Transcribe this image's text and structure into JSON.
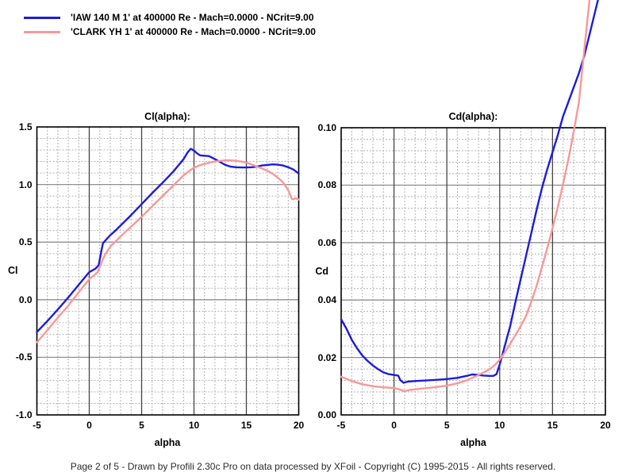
{
  "legend": {
    "items": [
      {
        "name": "IAW 140 M 1",
        "label": "'IAW 140 M 1' at 400000 Re - Mach=0.0000 - NCrit=9.00",
        "color": "#1c1cdc"
      },
      {
        "name": "CLARK YH 1",
        "label": "'CLARK YH 1' at 400000 Re - Mach=0.0000 - NCrit=9.00",
        "color": "#f89898"
      }
    ]
  },
  "footer": "Page 2 of 5   -   Drawn by Profili 2.30c Pro on data processed by  XFoil - Copyright (C) 1995-2015 - All rights reserved.",
  "colors": {
    "grid_minor": "#b3b3b3",
    "grid_major_h": "#8f8f8f",
    "grid_major_v": "#444444",
    "box_border": "#000000"
  },
  "chart_data": [
    {
      "type": "line",
      "title": "Cl(alpha):",
      "xlabel": "alpha",
      "ylabel": "Cl",
      "xlim": [
        -5,
        20
      ],
      "ylim": [
        -1.0,
        1.5
      ],
      "x_major": 5,
      "x_minor": 1,
      "y_major": 0.5,
      "y_minor": 0.1,
      "x_ticks": [
        "-5",
        "0",
        "5",
        "10",
        "15",
        "20"
      ],
      "y_ticks": [
        "1.5",
        "1.0",
        "0.5",
        "0.0",
        "-0.5",
        "-1.0"
      ],
      "grid": true,
      "legend_position": "top-left-of-page",
      "series": [
        {
          "name": "IAW 140 M 1",
          "color": "#1c1cdc",
          "x": [
            -5,
            -4,
            -3,
            -2,
            -1,
            -0.5,
            0,
            0.3,
            0.6,
            0.9,
            1,
            1.3,
            1.5,
            2,
            2.5,
            3,
            4,
            5,
            6,
            7,
            8,
            9,
            9.4,
            9.7,
            10,
            10.3,
            10.6,
            11,
            11.4,
            11.8,
            12.2,
            12.6,
            13,
            13.5,
            14,
            14.5,
            15,
            15.5,
            16,
            16.5,
            17,
            17.5,
            18,
            18.5,
            19,
            19.5,
            20
          ],
          "y": [
            -0.28,
            -0.185,
            -0.085,
            0.02,
            0.13,
            0.185,
            0.24,
            0.255,
            0.27,
            0.3,
            0.35,
            0.49,
            0.51,
            0.56,
            0.6,
            0.645,
            0.735,
            0.83,
            0.925,
            1.015,
            1.11,
            1.22,
            1.28,
            1.31,
            1.295,
            1.27,
            1.253,
            1.25,
            1.247,
            1.23,
            1.21,
            1.19,
            1.17,
            1.155,
            1.15,
            1.148,
            1.148,
            1.15,
            1.155,
            1.165,
            1.17,
            1.175,
            1.172,
            1.165,
            1.15,
            1.13,
            1.095
          ]
        },
        {
          "name": "CLARK YH 1",
          "color": "#f89898",
          "x": [
            -5,
            -4,
            -3,
            -2,
            -1,
            0,
            0.5,
            0.8,
            1.2,
            1.5,
            2,
            2.5,
            3,
            4,
            5,
            6,
            7,
            8,
            9,
            9.5,
            10,
            10.5,
            11,
            11.5,
            12,
            12.5,
            13,
            13.5,
            14,
            14.5,
            15,
            15.5,
            16,
            16.5,
            17,
            17.5,
            18,
            18.5,
            19,
            19.2,
            19.35,
            19.5,
            19.7,
            20
          ],
          "y": [
            -0.37,
            -0.265,
            -0.155,
            -0.05,
            0.065,
            0.18,
            0.215,
            0.24,
            0.33,
            0.39,
            0.46,
            0.505,
            0.55,
            0.635,
            0.72,
            0.81,
            0.9,
            0.99,
            1.08,
            1.115,
            1.145,
            1.165,
            1.18,
            1.19,
            1.2,
            1.205,
            1.21,
            1.21,
            1.205,
            1.2,
            1.19,
            1.175,
            1.155,
            1.14,
            1.12,
            1.095,
            1.06,
            1.02,
            0.95,
            0.91,
            0.875,
            0.872,
            0.882,
            0.87
          ]
        }
      ]
    },
    {
      "type": "line",
      "title": "Cd(alpha):",
      "xlabel": "alpha",
      "ylabel": "Cd",
      "xlim": [
        -5,
        20
      ],
      "ylim": [
        0.0,
        0.1
      ],
      "x_major": 5,
      "x_minor": 1,
      "y_major": 0.02,
      "y_minor": 0.004,
      "x_ticks": [
        "-5",
        "0",
        "5",
        "10",
        "15",
        "20"
      ],
      "y_ticks": [
        "0.10",
        "0.08",
        "0.06",
        "0.04",
        "0.02",
        "0.00"
      ],
      "grid": true,
      "clip": false,
      "series": [
        {
          "name": "IAW 140 M 1",
          "color": "#1c1cdc",
          "x": [
            -5,
            -4.5,
            -4,
            -3.5,
            -3,
            -2.5,
            -2,
            -1.5,
            -1,
            -0.5,
            0,
            0.4,
            0.6,
            0.9,
            1.3,
            2,
            3,
            4,
            5,
            6,
            7,
            7.4,
            8,
            8.5,
            9,
            9.4,
            9.7,
            10,
            10.3,
            10.7,
            11,
            11.5,
            12,
            12.5,
            13,
            13.5,
            14,
            14.5,
            15,
            15.5,
            16,
            16.5,
            17,
            17.5,
            18,
            18.6,
            19.3
          ],
          "y": [
            0.0333,
            0.03,
            0.0262,
            0.0232,
            0.0207,
            0.0188,
            0.0172,
            0.0159,
            0.0148,
            0.0142,
            0.0139,
            0.0137,
            0.0121,
            0.0112,
            0.0116,
            0.0118,
            0.012,
            0.0122,
            0.0125,
            0.0129,
            0.0137,
            0.0141,
            0.0139,
            0.0137,
            0.0136,
            0.0136,
            0.0142,
            0.0175,
            0.0215,
            0.027,
            0.031,
            0.0395,
            0.0475,
            0.0555,
            0.0635,
            0.0715,
            0.079,
            0.0855,
            0.0915,
            0.0975,
            0.104,
            0.109,
            0.114,
            0.119,
            0.125,
            0.134,
            0.1445
          ]
        },
        {
          "name": "CLARK YH 1",
          "color": "#f89898",
          "x": [
            -5,
            -4,
            -3,
            -2,
            -1,
            0,
            0.5,
            1,
            1.5,
            2,
            3,
            4,
            5,
            6,
            7,
            8,
            9,
            9.5,
            10,
            10.5,
            11,
            11.5,
            12,
            12.5,
            13,
            13.5,
            14,
            14.5,
            15,
            15.5,
            16,
            16.5,
            17,
            17.5,
            18,
            18.5
          ],
          "y": [
            0.0133,
            0.0118,
            0.0107,
            0.01,
            0.0096,
            0.0094,
            0.0089,
            0.0083,
            0.0087,
            0.0089,
            0.0093,
            0.0097,
            0.0102,
            0.011,
            0.0122,
            0.0139,
            0.0158,
            0.0172,
            0.0192,
            0.0218,
            0.0248,
            0.0278,
            0.031,
            0.0345,
            0.0395,
            0.045,
            0.0515,
            0.058,
            0.065,
            0.0725,
            0.0805,
            0.089,
            0.0985,
            0.109,
            0.127,
            0.1445
          ]
        }
      ]
    }
  ]
}
